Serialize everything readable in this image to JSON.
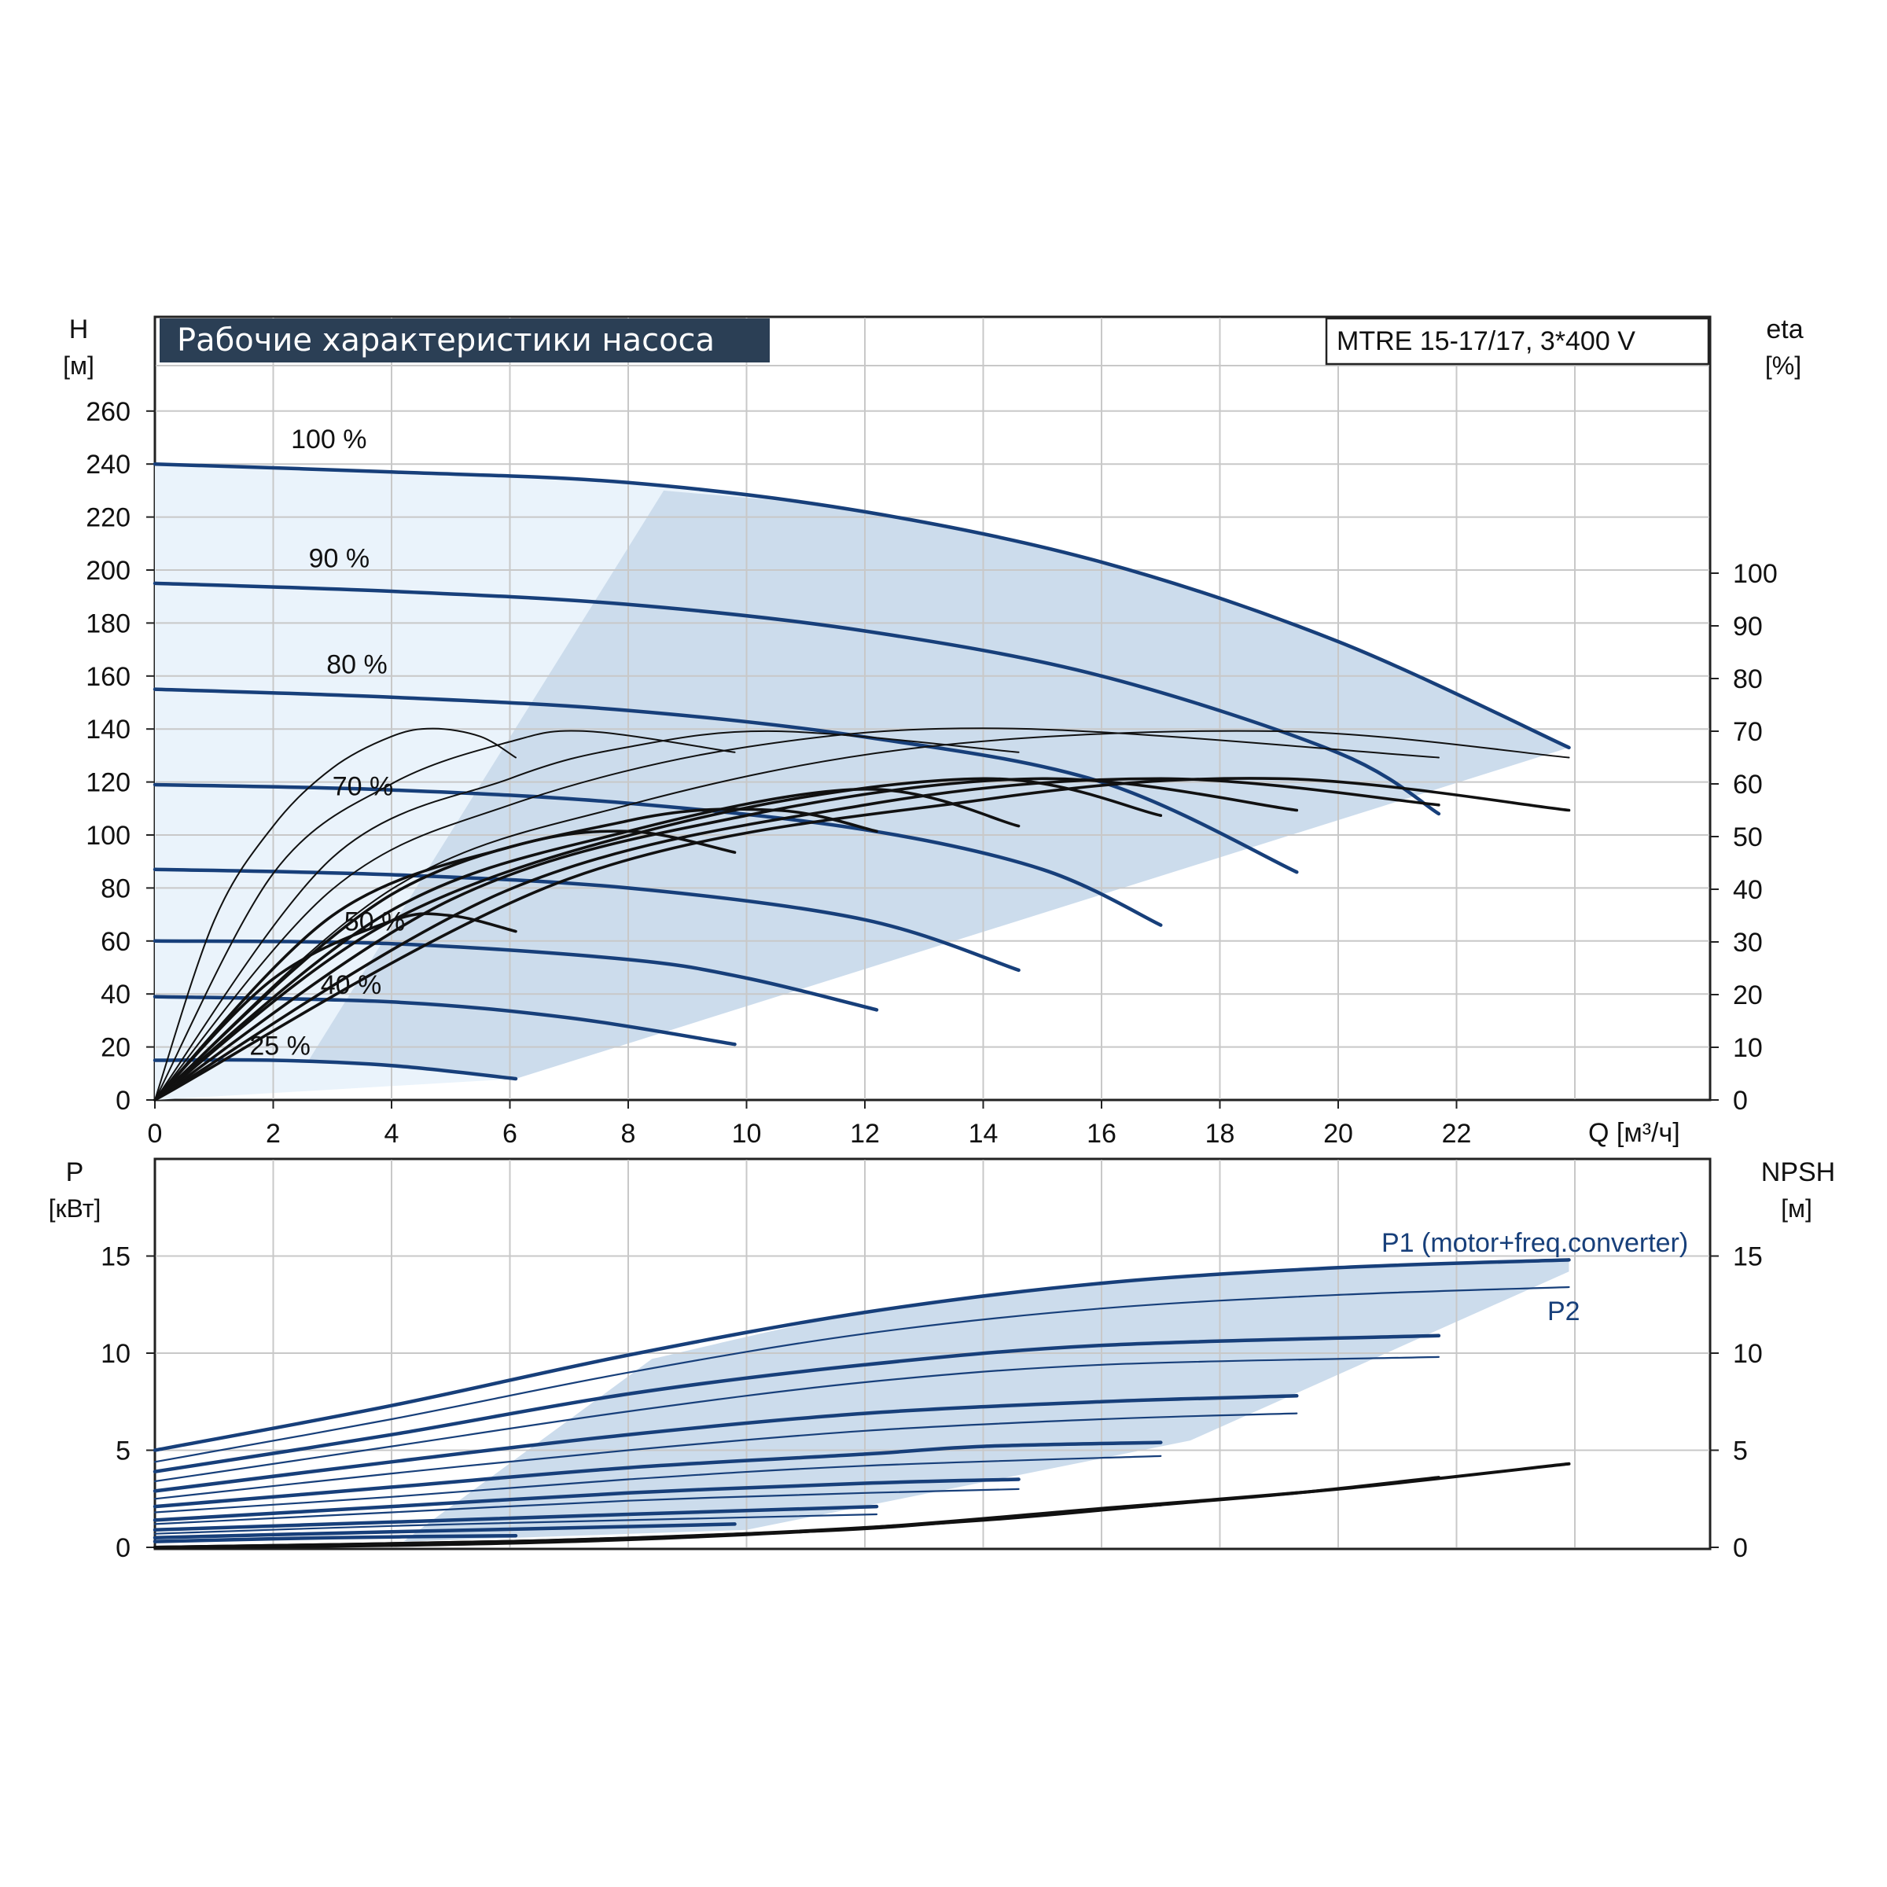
{
  "header": {
    "title": "Рабочие характеристики насоса",
    "model": "MTRE 15-17/17, 3*400 V"
  },
  "colors": {
    "curve_blue": "#173f7a",
    "region_fill": "#ccdcec",
    "region_light": "#eaf3fb",
    "title_bg": "#2b3f55",
    "eff_black": "#111111",
    "grid": "#c8c8c8"
  },
  "axes": {
    "h_label": "H",
    "h_unit": "[м]",
    "eta_label": "eta",
    "eta_unit": "[%]",
    "q_label": "Q [м³/ч]",
    "p_label": "P",
    "p_unit": "[кВт]",
    "npsh_label": "NPSH",
    "npsh_unit": "[м]"
  },
  "chart_data": [
    {
      "type": "line",
      "title": "Рабочие характеристики насоса",
      "xlabel": "Q [м³/ч]",
      "ylabel": "H [м]",
      "y2label": "eta [%]",
      "xlim": [
        0,
        24
      ],
      "ylim": [
        0,
        270
      ],
      "y2lim": [
        0,
        100
      ],
      "x_ticks": [
        0,
        2,
        4,
        6,
        8,
        10,
        12,
        14,
        16,
        18,
        20,
        22
      ],
      "y_ticks": [
        0,
        20,
        40,
        60,
        80,
        100,
        120,
        140,
        160,
        180,
        200,
        220,
        240,
        260
      ],
      "y2_ticks": [
        0,
        10,
        20,
        30,
        40,
        50,
        60,
        70,
        80,
        90,
        100
      ],
      "grid": true,
      "head_curves": [
        {
          "label": "100 %",
          "points": [
            [
              0,
              240
            ],
            [
              4,
              237
            ],
            [
              8,
              233
            ],
            [
              12,
              222
            ],
            [
              16,
              203
            ],
            [
              20,
              173
            ],
            [
              23.9,
              133
            ]
          ]
        },
        {
          "label": "90 %",
          "points": [
            [
              0,
              195
            ],
            [
              4,
              192
            ],
            [
              8,
              187
            ],
            [
              12,
              177
            ],
            [
              16,
              160
            ],
            [
              20,
              131
            ],
            [
              21.7,
              108
            ]
          ]
        },
        {
          "label": "80 %",
          "points": [
            [
              0,
              155
            ],
            [
              4,
              152
            ],
            [
              8,
              147
            ],
            [
              12,
              137
            ],
            [
              16,
              120
            ],
            [
              19.3,
              86
            ]
          ]
        },
        {
          "label": "70 %",
          "points": [
            [
              0,
              119
            ],
            [
              4,
              117
            ],
            [
              8,
              112
            ],
            [
              12,
              102
            ],
            [
              15,
              87
            ],
            [
              17,
              66
            ]
          ]
        },
        {
          "label": "",
          "points": [
            [
              0,
              87
            ],
            [
              4,
              85
            ],
            [
              8,
              80
            ],
            [
              12,
              68
            ],
            [
              14.6,
              49
            ]
          ]
        },
        {
          "label": "50 %",
          "points": [
            [
              0,
              60
            ],
            [
              4,
              59
            ],
            [
              8,
              53
            ],
            [
              10,
              46
            ],
            [
              12.2,
              34
            ]
          ]
        },
        {
          "label": "40 %",
          "points": [
            [
              0,
              39
            ],
            [
              4,
              37
            ],
            [
              7,
              31
            ],
            [
              9.8,
              21
            ]
          ]
        },
        {
          "label": "25 %",
          "points": [
            [
              0,
              15
            ],
            [
              2,
              15
            ],
            [
              4,
              13
            ],
            [
              6.1,
              8
            ]
          ]
        }
      ],
      "region": [
        [
          0,
          0
        ],
        [
          0,
          240
        ],
        [
          8.6,
          230
        ],
        [
          23.9,
          133
        ],
        [
          6.1,
          8
        ]
      ],
      "efficiency_curves": [
        {
          "label": "",
          "points": [
            [
              0,
              0
            ],
            [
              1,
              34
            ],
            [
              2,
              52
            ],
            [
              3,
              63
            ],
            [
              4,
              69
            ],
            [
              4.7,
              70.5
            ],
            [
              5.5,
              69
            ],
            [
              6.1,
              65
            ]
          ]
        },
        {
          "label": "",
          "points": [
            [
              0,
              0
            ],
            [
              2,
              43
            ],
            [
              4,
              60
            ],
            [
              6,
              68
            ],
            [
              7.3,
              70
            ],
            [
              9.8,
              66
            ]
          ]
        },
        {
          "label": "",
          "points": [
            [
              0,
              0
            ],
            [
              3,
              46
            ],
            [
              6,
              61
            ],
            [
              8,
              67
            ],
            [
              10.5,
              70
            ],
            [
              14.6,
              66
            ]
          ]
        },
        {
          "label": "",
          "points": [
            [
              0,
              0
            ],
            [
              3,
              40
            ],
            [
              6,
              56
            ],
            [
              10,
              67
            ],
            [
              14.5,
              70.5
            ],
            [
              21.7,
              65
            ]
          ]
        },
        {
          "label": "",
          "points": [
            [
              0,
              0
            ],
            [
              4,
              40
            ],
            [
              8,
              56
            ],
            [
              13,
              67
            ],
            [
              19,
              70
            ],
            [
              23.9,
              65
            ]
          ]
        },
        {
          "label": "",
          "points": [
            [
              0,
              0
            ],
            [
              2,
              23
            ],
            [
              4,
              34
            ],
            [
              5,
              35
            ],
            [
              6.1,
              32
            ]
          ]
        },
        {
          "label": "",
          "points": [
            [
              0,
              0
            ],
            [
              3,
              35
            ],
            [
              6,
              48
            ],
            [
              8,
              51
            ],
            [
              9.8,
              47
            ]
          ]
        },
        {
          "label": "",
          "points": [
            [
              0,
              0
            ],
            [
              4,
              39
            ],
            [
              8,
              53
            ],
            [
              10.5,
              55
            ],
            [
              12.2,
              51
            ]
          ]
        },
        {
          "label": "",
          "points": [
            [
              0,
              0
            ],
            [
              4,
              36
            ],
            [
              8,
              51
            ],
            [
              12,
              59
            ],
            [
              14.6,
              52
            ]
          ]
        },
        {
          "label": "",
          "points": [
            [
              0,
              0
            ],
            [
              4,
              34
            ],
            [
              9,
              53
            ],
            [
              14,
              61
            ],
            [
              17,
              54
            ]
          ]
        },
        {
          "label": "",
          "points": [
            [
              0,
              0
            ],
            [
              5,
              38
            ],
            [
              10,
              54
            ],
            [
              15,
              61
            ],
            [
              19.3,
              55
            ]
          ]
        },
        {
          "label": "",
          "points": [
            [
              0,
              0
            ],
            [
              6,
              40
            ],
            [
              12,
              56
            ],
            [
              17,
              61
            ],
            [
              21.7,
              56
            ]
          ]
        },
        {
          "label": "",
          "points": [
            [
              0,
              0
            ],
            [
              7,
              42
            ],
            [
              14,
              57
            ],
            [
              19,
              61
            ],
            [
              23.9,
              55
            ]
          ]
        }
      ]
    },
    {
      "type": "line",
      "xlabel": "Q [м³/ч]",
      "ylabel": "P [кВт]",
      "y2label": "NPSH [м]",
      "xlim": [
        0,
        24
      ],
      "ylim": [
        0,
        20
      ],
      "y_ticks": [
        0,
        5,
        10,
        15
      ],
      "y2_ticks": [
        0,
        5,
        10,
        15
      ],
      "grid": true,
      "series": [
        {
          "name": "P1 (motor+freq.converter)",
          "points": [
            [
              0,
              5
            ],
            [
              4,
              7.3
            ],
            [
              8,
              9.9
            ],
            [
              12,
              12.1
            ],
            [
              16,
              13.6
            ],
            [
              20,
              14.4
            ],
            [
              23.9,
              14.8
            ]
          ]
        },
        {
          "name": "P2",
          "points": [
            [
              0,
              4.4
            ],
            [
              4,
              6.6
            ],
            [
              8,
              9.0
            ],
            [
              12,
              11.0
            ],
            [
              16,
              12.3
            ],
            [
              20,
              13.0
            ],
            [
              23.9,
              13.4
            ]
          ]
        },
        {
          "name": "",
          "points": [
            [
              0,
              3.9
            ],
            [
              4,
              5.8
            ],
            [
              8,
              7.9
            ],
            [
              12,
              9.4
            ],
            [
              16,
              10.4
            ],
            [
              21.7,
              10.9
            ]
          ]
        },
        {
          "name": "",
          "points": [
            [
              0,
              3.4
            ],
            [
              4,
              5.2
            ],
            [
              8,
              7.0
            ],
            [
              12,
              8.5
            ],
            [
              16,
              9.4
            ],
            [
              21.7,
              9.8
            ]
          ]
        },
        {
          "name": "",
          "points": [
            [
              0,
              2.9
            ],
            [
              4,
              4.4
            ],
            [
              8,
              5.8
            ],
            [
              12,
              6.9
            ],
            [
              16,
              7.5
            ],
            [
              19.3,
              7.8
            ]
          ]
        },
        {
          "name": "",
          "points": [
            [
              0,
              2.5
            ],
            [
              4,
              3.8
            ],
            [
              8,
              5.0
            ],
            [
              12,
              6.0
            ],
            [
              16,
              6.6
            ],
            [
              19.3,
              6.9
            ]
          ]
        },
        {
          "name": "",
          "points": [
            [
              0,
              2.1
            ],
            [
              4,
              3.1
            ],
            [
              8,
              4.1
            ],
            [
              12,
              4.8
            ],
            [
              14,
              5.2
            ],
            [
              17,
              5.4
            ]
          ]
        },
        {
          "name": "",
          "points": [
            [
              0,
              1.8
            ],
            [
              4,
              2.6
            ],
            [
              8,
              3.5
            ],
            [
              12,
              4.2
            ],
            [
              17,
              4.7
            ]
          ]
        },
        {
          "name": "",
          "points": [
            [
              0,
              1.4
            ],
            [
              4,
              2.1
            ],
            [
              8,
              2.8
            ],
            [
              12,
              3.3
            ],
            [
              14.6,
              3.5
            ]
          ]
        },
        {
          "name": "",
          "points": [
            [
              0,
              1.2
            ],
            [
              4,
              1.8
            ],
            [
              8,
              2.4
            ],
            [
              12,
              2.8
            ],
            [
              14.6,
              3.0
            ]
          ]
        },
        {
          "name": "",
          "points": [
            [
              0,
              0.9
            ],
            [
              4,
              1.3
            ],
            [
              8,
              1.7
            ],
            [
              12.2,
              2.1
            ]
          ]
        },
        {
          "name": "",
          "points": [
            [
              0,
              0.7
            ],
            [
              4,
              1.1
            ],
            [
              8,
              1.4
            ],
            [
              12.2,
              1.7
            ]
          ]
        },
        {
          "name": "",
          "points": [
            [
              0,
              0.5
            ],
            [
              4,
              0.8
            ],
            [
              7,
              1.0
            ],
            [
              9.8,
              1.2
            ]
          ]
        },
        {
          "name": "",
          "points": [
            [
              0,
              0.3
            ],
            [
              3,
              0.5
            ],
            [
              6.1,
              0.6
            ]
          ]
        }
      ],
      "npsh_curves": [
        {
          "label": "",
          "points": [
            [
              0,
              0
            ],
            [
              4,
              0.1
            ],
            [
              8,
              0.4
            ],
            [
              12,
              1.0
            ],
            [
              16,
              2.0
            ],
            [
              20,
              3.0
            ],
            [
              23.9,
              4.3
            ]
          ]
        },
        {
          "label": "",
          "points": [
            [
              0,
              0
            ],
            [
              6,
              0.3
            ],
            [
              10,
              0.7
            ],
            [
              14,
              1.4
            ],
            [
              17,
              2.2
            ],
            [
              19.3,
              2.8
            ],
            [
              21.7,
              3.6
            ]
          ]
        },
        {
          "label": "",
          "points": [
            [
              0,
              0
            ],
            [
              6,
              0.3
            ],
            [
              10,
              0.7
            ],
            [
              12.2,
              1.0
            ],
            [
              14.6,
              1.6
            ],
            [
              17,
              2.2
            ]
          ]
        }
      ]
    }
  ]
}
